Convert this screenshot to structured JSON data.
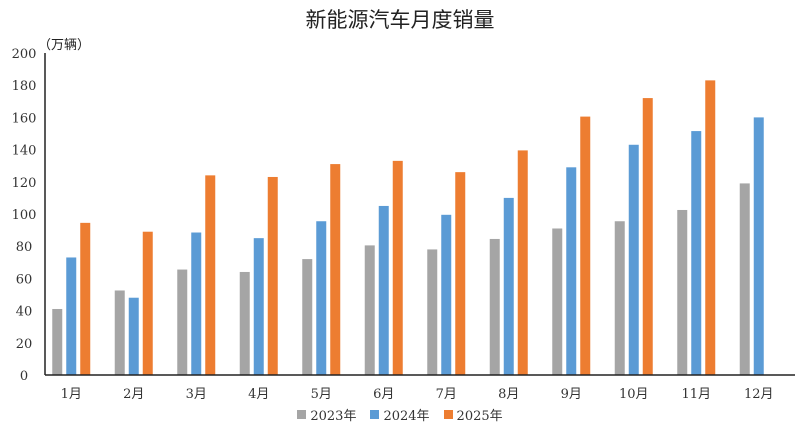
{
  "chart_data": {
    "type": "bar",
    "title": "新能源汽车月度销量",
    "ylabel": "（万辆）",
    "xlabel": "",
    "ylim": [
      0,
      200
    ],
    "yticks": [
      0,
      20,
      40,
      60,
      80,
      100,
      120,
      140,
      160,
      180,
      200
    ],
    "grid": false,
    "legend_position": "bottom",
    "categories": [
      "1月",
      "2月",
      "3月",
      "4月",
      "5月",
      "6月",
      "7月",
      "8月",
      "9月",
      "10月",
      "11月",
      "12月"
    ],
    "series": [
      {
        "name": "2023年",
        "color": "#A5A5A5",
        "values": [
          41,
          52.5,
          65.5,
          64,
          72,
          80.5,
          78,
          84.5,
          91,
          95.5,
          102.5,
          119
        ]
      },
      {
        "name": "2024年",
        "color": "#5B9BD5",
        "values": [
          73,
          48,
          88.5,
          85,
          95.5,
          105,
          99.5,
          110,
          129,
          143,
          151.5,
          160
        ]
      },
      {
        "name": "2025年",
        "color": "#ED7D31",
        "values": [
          94.5,
          89,
          124,
          123,
          131,
          133,
          126,
          139.5,
          160.5,
          172,
          183,
          null
        ]
      }
    ]
  }
}
